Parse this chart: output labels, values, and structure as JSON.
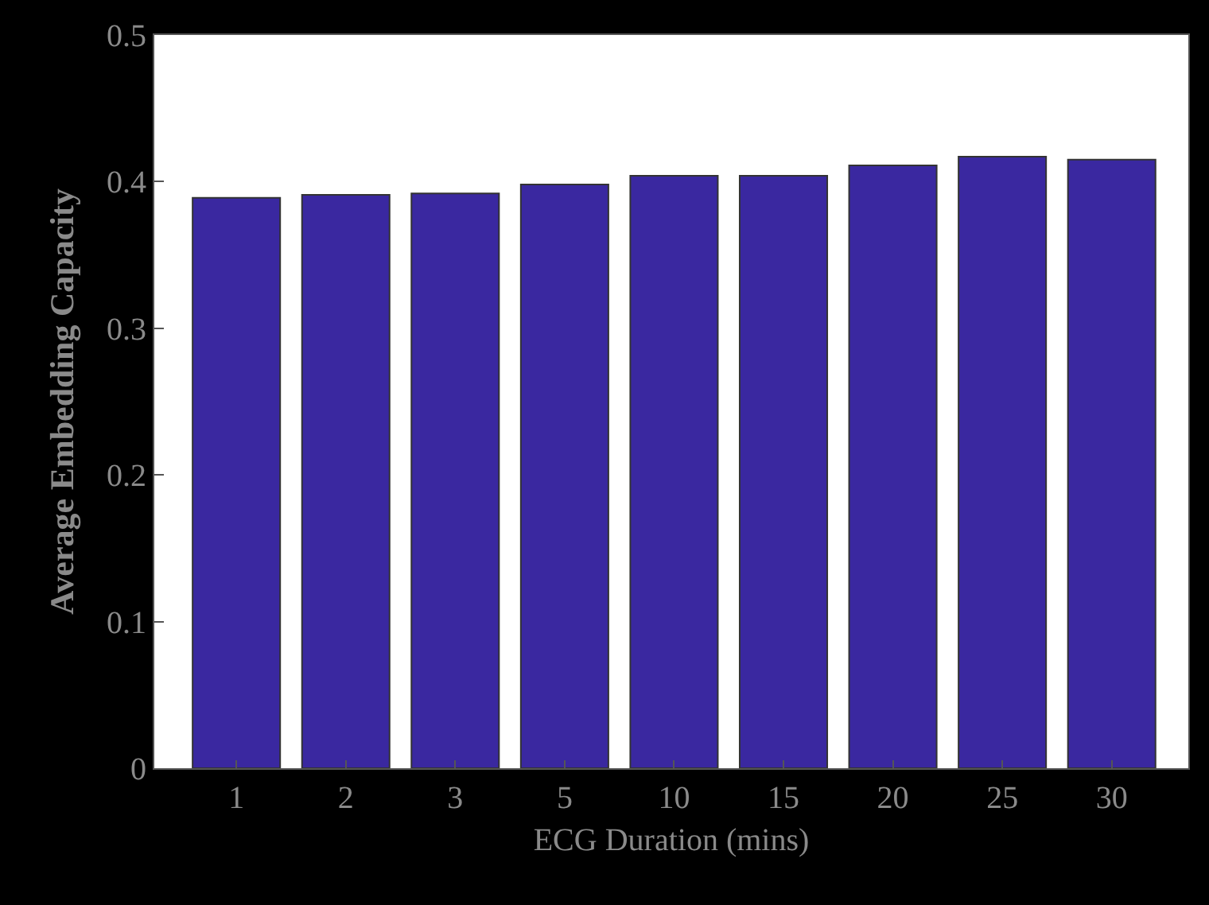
{
  "chart_data": {
    "type": "bar",
    "xlabel": "ECG Duration (mins)",
    "ylabel": "Average Embedding Capacity",
    "categories": [
      "1",
      "2",
      "3",
      "5",
      "10",
      "15",
      "20",
      "25",
      "30"
    ],
    "values": [
      0.389,
      0.391,
      0.392,
      0.398,
      0.404,
      0.404,
      0.411,
      0.417,
      0.415
    ],
    "color": "#3a28a0",
    "ylim": [
      0,
      0.5
    ],
    "yticks": [
      0,
      0.1,
      0.2,
      0.3,
      0.4,
      0.5
    ]
  }
}
